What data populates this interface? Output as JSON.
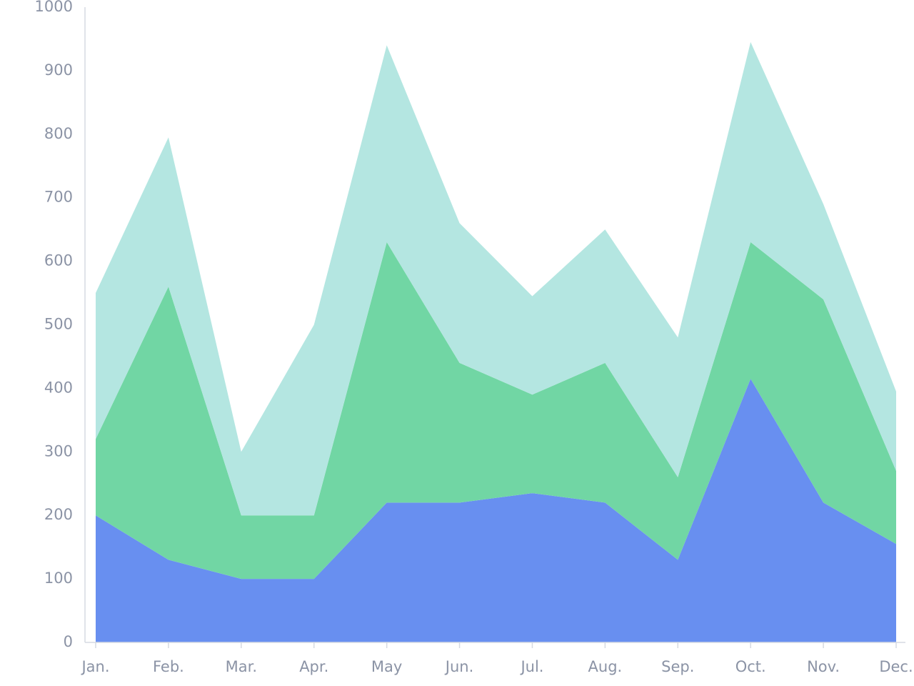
{
  "chart_data": {
    "type": "stacked-area",
    "categories": [
      "Jan.",
      "Feb.",
      "Mar.",
      "Apr.",
      "May",
      "Jun.",
      "Jul.",
      "Aug.",
      "Sep.",
      "Oct.",
      "Nov.",
      "Dec."
    ],
    "series": [
      {
        "color": "#688ff0",
        "values": [
          200,
          130,
          100,
          100,
          220,
          220,
          235,
          220,
          130,
          415,
          220,
          155
        ]
      },
      {
        "color": "#71d6a4",
        "values": [
          120,
          430,
          100,
          100,
          410,
          220,
          155,
          220,
          130,
          215,
          320,
          115
        ]
      },
      {
        "color": "#b4e6e1",
        "values": [
          230,
          235,
          100,
          300,
          310,
          220,
          155,
          210,
          220,
          315,
          150,
          125
        ]
      }
    ],
    "ylim": [
      0,
      1000
    ],
    "yticks": [
      0,
      100,
      200,
      300,
      400,
      500,
      600,
      700,
      800,
      900,
      1000
    ],
    "grid": false
  }
}
